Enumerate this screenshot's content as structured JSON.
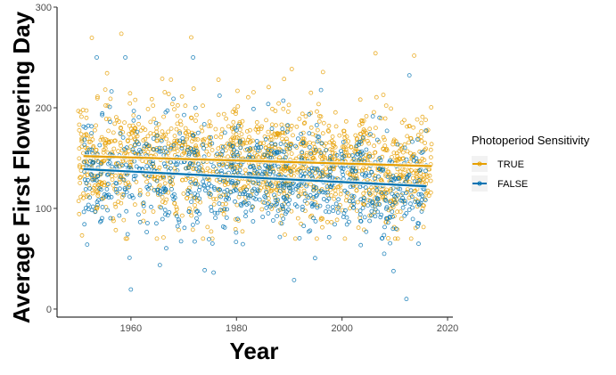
{
  "chart_data": {
    "type": "scatter",
    "title": "",
    "xlabel": "Year",
    "ylabel": "Average First Flowering Day",
    "xlim": [
      1946,
      2021
    ],
    "ylim": [
      -8,
      300
    ],
    "x_ticks": [
      1960,
      1980,
      2000,
      2020
    ],
    "y_ticks": [
      0,
      100,
      200,
      300
    ],
    "grid": false,
    "legend": {
      "title": "Photoperiod Sensitivity",
      "placement": "right",
      "entries": [
        "TRUE",
        "FALSE"
      ]
    },
    "series": [
      {
        "name": "TRUE",
        "color": "#E69F00",
        "marker": "open-circle",
        "x_range": [
          1950,
          2017
        ],
        "mean_range": [
          70,
          235
        ],
        "n_points": 1500,
        "trend": {
          "x": [
            1951,
            2017
          ],
          "y": [
            152,
            142
          ]
        }
      },
      {
        "name": "FALSE",
        "color": "#0072B2",
        "marker": "open-circle",
        "x_range": [
          1951,
          2016
        ],
        "mean_range": [
          10,
          200
        ],
        "n_points": 950,
        "trend": {
          "x": [
            1951,
            2016
          ],
          "y": [
            139,
            122
          ]
        }
      }
    ]
  }
}
